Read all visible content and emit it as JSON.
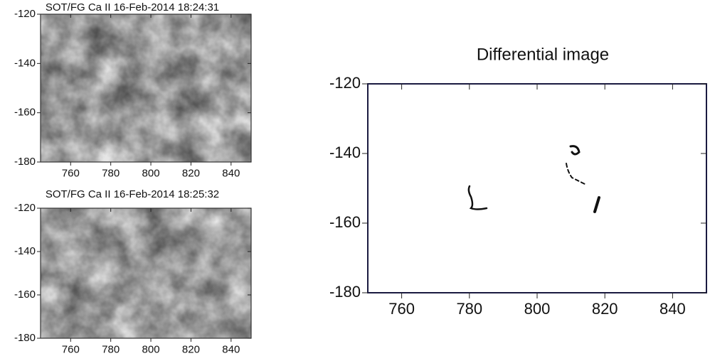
{
  "chart_data": [
    {
      "type": "image",
      "title": "SOT/FG  Ca II  16-Feb-2014 18:24:31",
      "xlim": [
        745,
        850
      ],
      "ylim": [
        -180,
        -120
      ],
      "xticks": [
        760,
        780,
        800,
        820,
        840
      ],
      "yticks": [
        -180,
        -160,
        -140,
        -120
      ],
      "colormap": "gray"
    },
    {
      "type": "image",
      "title": "SOT/FG  Ca II  16-Feb-2014 18:25:32",
      "xlim": [
        745,
        850
      ],
      "ylim": [
        -180,
        -120
      ],
      "xticks": [
        760,
        780,
        800,
        820,
        840
      ],
      "yticks": [
        -180,
        -160,
        -140,
        -120
      ],
      "colormap": "gray"
    },
    {
      "type": "image",
      "title": "Differential image",
      "xlim": [
        750,
        850
      ],
      "ylim": [
        -180,
        -120
      ],
      "xticks": [
        760,
        780,
        800,
        820,
        840
      ],
      "yticks": [
        -180,
        -160,
        -140,
        -120
      ],
      "colormap": "difference"
    }
  ]
}
